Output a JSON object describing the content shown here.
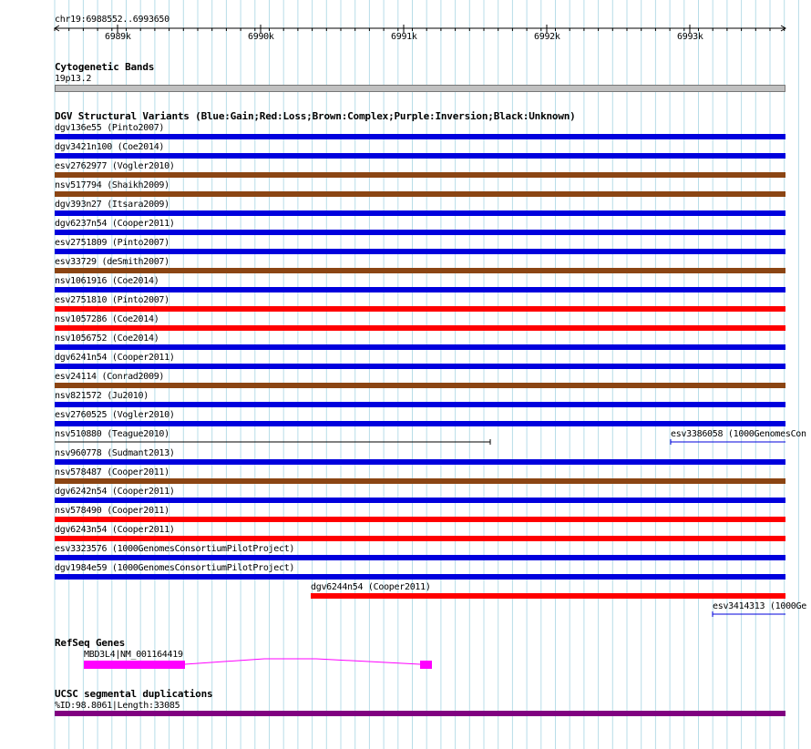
{
  "ruler": {
    "position": "chr19:6988552..6993650",
    "ticks": [
      "6989k",
      "6990k",
      "6991k",
      "6992k",
      "6993k"
    ]
  },
  "cytoband": {
    "title": "Cytogenetic Bands",
    "label": "19p13.2"
  },
  "dgv": {
    "title": "DGV Structural Variants (Blue:Gain;Red:Loss;Brown:Complex;Purple:Inversion;Black:Unknown)",
    "colors": {
      "gain": "#0000dd",
      "loss": "#ff0000",
      "complex": "#8b4513",
      "unknown": "#000000"
    },
    "items": [
      {
        "label": "dgv136e55 (Pinto2007)",
        "type": "gain"
      },
      {
        "label": "dgv3421n100 (Coe2014)",
        "type": "gain"
      },
      {
        "label": "esv2762977 (Vogler2010)",
        "type": "complex"
      },
      {
        "label": "nsv517794 (Shaikh2009)",
        "type": "complex"
      },
      {
        "label": "dgv393n27 (Itsara2009)",
        "type": "gain"
      },
      {
        "label": "dgv6237n54 (Cooper2011)",
        "type": "gain"
      },
      {
        "label": "esv2751809 (Pinto2007)",
        "type": "gain"
      },
      {
        "label": "esv33729 (deSmith2007)",
        "type": "complex"
      },
      {
        "label": "nsv1061916 (Coe2014)",
        "type": "gain"
      },
      {
        "label": "esv2751810 (Pinto2007)",
        "type": "loss"
      },
      {
        "label": "nsv1057286 (Coe2014)",
        "type": "loss"
      },
      {
        "label": "nsv1056752 (Coe2014)",
        "type": "gain"
      },
      {
        "label": "dgv6241n54 (Cooper2011)",
        "type": "gain"
      },
      {
        "label": "esv24114 (Conrad2009)",
        "type": "complex"
      },
      {
        "label": "nsv821572 (Ju2010)",
        "type": "gain"
      },
      {
        "label": "esv2760525 (Vogler2010)",
        "type": "gain"
      },
      {
        "label": "nsv510880 (Teague2010)",
        "type": "unknown",
        "partial": true,
        "second_label": "esv3386058 (1000GenomesCon"
      },
      {
        "label": "nsv960778 (Sudmant2013)",
        "type": "gain"
      },
      {
        "label": "nsv578487 (Cooper2011)",
        "type": "complex"
      },
      {
        "label": "dgv6242n54 (Cooper2011)",
        "type": "gain"
      },
      {
        "label": "nsv578490 (Cooper2011)",
        "type": "loss"
      },
      {
        "label": "dgv6243n54 (Cooper2011)",
        "type": "loss"
      },
      {
        "label": "esv3323576 (1000GenomesConsortiumPilotProject)",
        "type": "gain"
      },
      {
        "label": "dgv1984e59 (1000GenomesConsortiumPilotProject)",
        "type": "gain"
      },
      {
        "label": "dgv6244n54 (Cooper2011)",
        "type": "loss",
        "offset": true
      },
      {
        "label": "esv3414313 (1000Ge",
        "type": "gain",
        "tail": true
      }
    ]
  },
  "refseq": {
    "title": "RefSeq Genes",
    "gene": "MBD3L4|NM_001164419",
    "color": "#ff00ff"
  },
  "segdup": {
    "title": "UCSC segmental duplications",
    "label": "%ID:98.8061|Length:33085",
    "color": "#800080"
  }
}
